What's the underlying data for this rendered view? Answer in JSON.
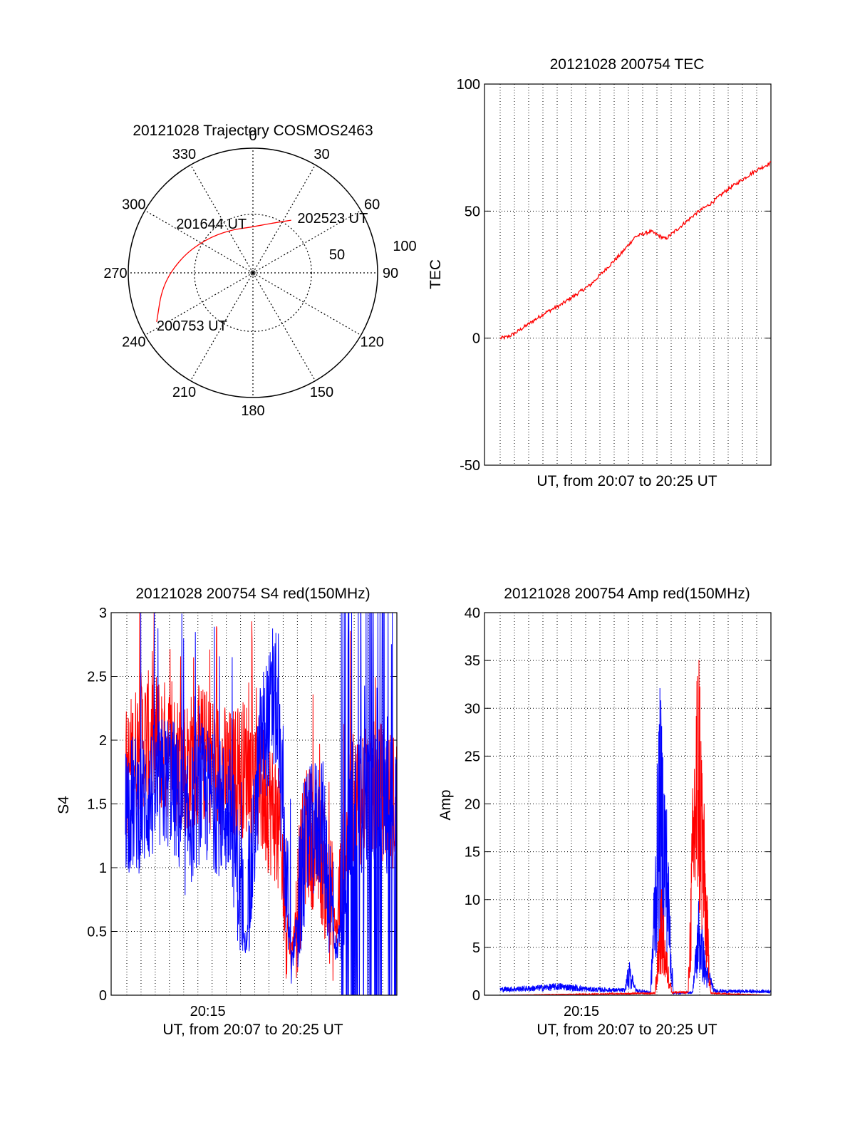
{
  "colors": {
    "red": "#ff0000",
    "blue": "#0000ff",
    "axis": "#000000",
    "grid": "#000000",
    "background": "#ffffff"
  },
  "chart_data": [
    {
      "type": "polar",
      "title": "20121028 Trajectory COSMOS2463",
      "angle_labels": [
        "0",
        "30",
        "60",
        "90",
        "120",
        "150",
        "180",
        "210",
        "240",
        "270",
        "300",
        "330"
      ],
      "radial_labels": [
        "50",
        "100"
      ],
      "grid": true,
      "trajectory": {
        "color": "red",
        "points": [
          {
            "azimuth": 243,
            "elevation": 12
          },
          {
            "azimuth": 262,
            "elevation": 24
          },
          {
            "azimuth": 282,
            "elevation": 37
          },
          {
            "azimuth": 305,
            "elevation": 48
          },
          {
            "azimuth": 332,
            "elevation": 55
          },
          {
            "azimuth": 358,
            "elevation": 57
          },
          {
            "azimuth": 20,
            "elevation": 52
          },
          {
            "azimuth": 36,
            "elevation": 43
          }
        ],
        "annotations": [
          {
            "text": "200753 UT",
            "azimuth": 243,
            "elevation": 12
          },
          {
            "text": "201644 UT",
            "azimuth": 312,
            "elevation": 50
          },
          {
            "text": "202523 UT",
            "azimuth": 37,
            "elevation": 41
          }
        ]
      }
    },
    {
      "type": "line",
      "title": "20121028 200754 TEC",
      "xlabel": "UT, from 20:07 to 20:25 UT",
      "ylabel": "TEC",
      "xlim": [
        0,
        18
      ],
      "ylim": [
        -50,
        100
      ],
      "yticks": [
        "-50",
        "0",
        "50",
        "100"
      ],
      "grid": true,
      "series": [
        {
          "color": "red",
          "x": [
            0,
            0.5,
            1,
            2,
            3,
            4,
            5,
            6,
            7,
            8,
            9,
            10,
            11,
            12,
            13,
            14,
            15,
            16,
            17,
            18
          ],
          "y": [
            0,
            0.5,
            2,
            6,
            10,
            13,
            17,
            21,
            27,
            33,
            40,
            42,
            39,
            44,
            49,
            53,
            58,
            62,
            66,
            69
          ]
        }
      ]
    },
    {
      "type": "line",
      "title": "20121028 200754 S4 red(150MHz)",
      "xlabel": "UT, from 20:07 to 20:25 UT",
      "ylabel": "S4",
      "xlim": [
        0,
        18
      ],
      "ylim": [
        0,
        3
      ],
      "yticks": [
        "0",
        "0.5",
        "1",
        "1.5",
        "2",
        "2.5",
        "3"
      ],
      "xticks": [
        {
          "x": 6,
          "label": "20:15"
        }
      ],
      "grid": true,
      "series": [
        {
          "color": "red",
          "x": [
            0,
            1,
            2,
            3,
            4,
            5,
            6,
            7,
            8,
            9,
            10,
            11,
            12,
            13,
            14,
            15,
            16,
            17,
            18
          ],
          "y": [
            1.7,
            2.0,
            2.0,
            1.9,
            1.8,
            1.9,
            1.8,
            1.7,
            1.8,
            1.6,
            1.4,
            0.3,
            1.3,
            1.1,
            0.5,
            1.5,
            1.6,
            1.6,
            1.5
          ]
        },
        {
          "color": "blue",
          "x": [
            0,
            1,
            2,
            3,
            4,
            5,
            6,
            7,
            8,
            9,
            10,
            11,
            12,
            13,
            14,
            15,
            16,
            17,
            18
          ],
          "y": [
            1.5,
            1.5,
            1.6,
            1.7,
            1.3,
            1.6,
            1.5,
            1.4,
            0.4,
            2.0,
            2.3,
            0.2,
            1.2,
            1.4,
            0.3,
            1.5,
            1.5,
            1.5,
            1.5
          ]
        }
      ]
    },
    {
      "type": "line",
      "title": "20121028 200754 Amp red(150MHz)",
      "xlabel": "UT, from 20:07 to 20:25 UT",
      "ylabel": "Amp",
      "xlim": [
        0,
        18
      ],
      "ylim": [
        0,
        40
      ],
      "yticks": [
        "0",
        "5",
        "10",
        "15",
        "20",
        "25",
        "30",
        "35",
        "40"
      ],
      "xticks": [
        {
          "x": 6,
          "label": "20:15"
        }
      ],
      "grid": true,
      "series": [
        {
          "color": "blue",
          "x": [
            0,
            2,
            4,
            6,
            8.3,
            8.6,
            9,
            10,
            10.6,
            11,
            11.5,
            12.8,
            13.2,
            13.7,
            14.2,
            15,
            16,
            18
          ],
          "y": [
            0.6,
            0.7,
            0.9,
            0.6,
            0.5,
            3,
            0.5,
            0.3,
            27.5,
            20,
            0.2,
            0.3,
            9,
            3,
            0.5,
            0.4,
            0.4,
            0.4
          ]
        },
        {
          "color": "red",
          "x": [
            0,
            10.3,
            10.7,
            11,
            11.4,
            12.5,
            12.9,
            13.2,
            13.6,
            14,
            18
          ],
          "y": [
            0,
            0.2,
            10,
            5,
            0.3,
            0.3,
            25,
            33.5,
            15,
            0.2,
            0
          ]
        }
      ]
    }
  ]
}
